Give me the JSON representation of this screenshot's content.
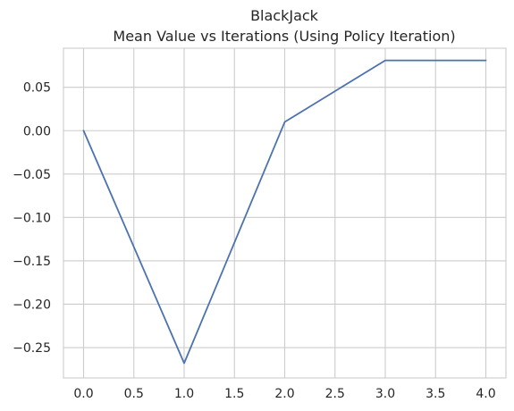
{
  "chart_data": {
    "type": "line",
    "title": [
      "BlackJack",
      "Mean Value vs Iterations (Using Policy Iteration)"
    ],
    "xlabel": "",
    "ylabel": "",
    "xlim": [
      -0.2,
      4.2
    ],
    "ylim": [
      -0.285,
      0.095
    ],
    "xticks": [
      0.0,
      0.5,
      1.0,
      1.5,
      2.0,
      2.5,
      3.0,
      3.5,
      4.0
    ],
    "xtick_labels": [
      "0.0",
      "0.5",
      "1.0",
      "1.5",
      "2.0",
      "2.5",
      "3.0",
      "3.5",
      "4.0"
    ],
    "yticks": [
      0.05,
      0.0,
      -0.05,
      -0.1,
      -0.15,
      -0.2,
      -0.25
    ],
    "ytick_labels": [
      "0.05",
      "0.00",
      "−0.05",
      "−0.10",
      "−0.15",
      "−0.20",
      "−0.25"
    ],
    "grid": true,
    "legend": "none",
    "series": [
      {
        "x": [
          0,
          1,
          2,
          3,
          4
        ],
        "values": [
          0.0,
          -0.268,
          0.01,
          0.081,
          0.081
        ],
        "color": "#4c72b0"
      }
    ]
  }
}
